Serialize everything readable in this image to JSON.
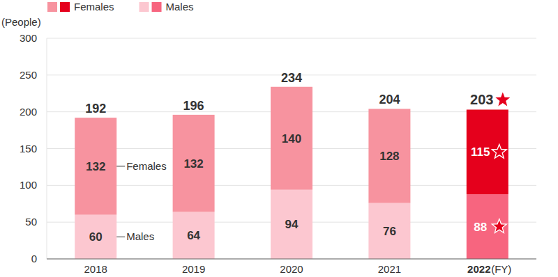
{
  "chart_data": {
    "type": "bar",
    "stacked": true,
    "data_labels": true,
    "grid": true,
    "legend": "top-left",
    "y_label": "(People)",
    "x_label": "(FY)",
    "categories": [
      "2018",
      "2019",
      "2020",
      "2021",
      "2022"
    ],
    "ylim": [
      0,
      300
    ],
    "yticks": [
      0,
      50,
      100,
      150,
      200,
      250,
      300
    ],
    "totals": [
      192,
      196,
      234,
      204,
      203
    ],
    "series": [
      {
        "name": "Males",
        "color": "#fcc7d0",
        "colors": [
          "#fcc7d0",
          "#fcc7d0",
          "#fcc7d0",
          "#fcc7d0",
          "#f7657f"
        ],
        "values": [
          60,
          64,
          94,
          76,
          88
        ]
      },
      {
        "name": "Females",
        "color": "#f7939f",
        "colors": [
          "#f7939f",
          "#f7939f",
          "#f7939f",
          "#f7939f",
          "#e5001c"
        ],
        "values": [
          132,
          132,
          140,
          128,
          115
        ]
      }
    ]
  }
}
